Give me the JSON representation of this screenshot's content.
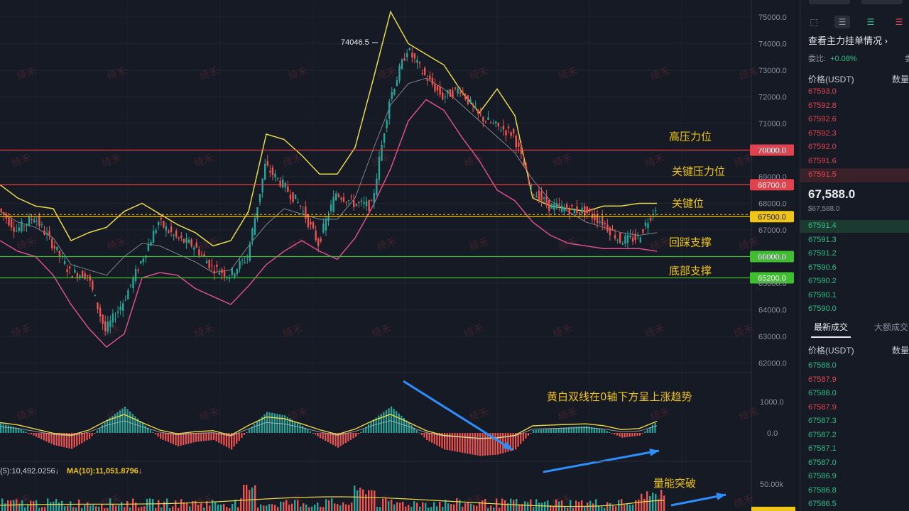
{
  "chart_data": {
    "type": "line",
    "subtype": "candlestick-with-bollinger-macd-volume",
    "y_axis": {
      "min": 62000,
      "max": 75000,
      "ticks": [
        "75000.0",
        "74000.0",
        "73000.0",
        "72000.0",
        "71000.0",
        "70000.0",
        "69000.0",
        "68000.0",
        "67000.0",
        "66000.0",
        "65000.0",
        "64000.0",
        "63000.0",
        "62000.0"
      ]
    },
    "peak_label": "74046.5",
    "price_series": {
      "x": [
        0,
        25,
        50,
        75,
        100,
        125,
        150,
        175,
        200,
        225,
        250,
        275,
        300,
        325,
        350,
        375,
        400,
        425,
        450,
        475,
        500,
        525,
        550,
        575,
        600,
        625,
        650,
        675,
        700,
        725,
        750,
        775,
        800,
        825,
        850,
        875,
        900,
        925
      ],
      "close": [
        67800,
        67000,
        67500,
        66500,
        65400,
        65300,
        63200,
        64300,
        65800,
        67300,
        66700,
        66400,
        65600,
        65300,
        66000,
        69400,
        68700,
        67900,
        66500,
        68400,
        68000,
        67900,
        71900,
        73800,
        72800,
        72000,
        72300,
        71300,
        70900,
        70600,
        68500,
        67900,
        67800,
        67700,
        67300,
        66600,
        66700,
        67900
      ]
    },
    "bollinger": {
      "upper": [
        68700,
        68200,
        67900,
        67800,
        66600,
        66900,
        67100,
        67700,
        68000,
        67600,
        67200,
        66900,
        66400,
        66600,
        67700,
        70600,
        70400,
        69800,
        69100,
        69100,
        70100,
        72600,
        75200,
        74000,
        73600,
        73200,
        72200,
        71400,
        72300,
        71300,
        68200,
        67900,
        67800,
        67700,
        67900,
        67900,
        68000,
        68000
      ],
      "middle": [
        67700,
        67300,
        67100,
        66700,
        65700,
        65500,
        65300,
        66000,
        66500,
        66400,
        66100,
        65800,
        65400,
        65500,
        66400,
        67200,
        67800,
        67600,
        67400,
        67400,
        68200,
        70000,
        71700,
        72500,
        72700,
        72300,
        71700,
        71100,
        70500,
        69900,
        68900,
        68100,
        67700,
        67300,
        67100,
        66900,
        66800,
        66900
      ],
      "lower": [
        66600,
        66200,
        66000,
        65300,
        64200,
        63300,
        62600,
        63100,
        65200,
        65400,
        65300,
        64800,
        64500,
        64200,
        64900,
        65700,
        66200,
        66600,
        66200,
        65900,
        66700,
        67900,
        69300,
        71100,
        71900,
        71500,
        70500,
        69600,
        68500,
        68100,
        67300,
        66800,
        66500,
        66400,
        66300,
        66300,
        66300,
        66200
      ]
    },
    "horizontal_levels": [
      {
        "price": "70000.0",
        "label": "高压力位",
        "color": "#e0434e"
      },
      {
        "price": "68700.0",
        "label": "关键压力位",
        "color": "#e0434e"
      },
      {
        "price": "67500.0",
        "label": "关键位",
        "color": "#f0c419"
      },
      {
        "price": "66000.0",
        "label": "回踩支撑",
        "color": "#3fbf2f"
      },
      {
        "price": "65200.0",
        "label": "底部支撑",
        "color": "#3fbf2f"
      }
    ],
    "macd": {
      "ticks": [
        "1000.0",
        "0.0"
      ],
      "annotation": "黄白双线在0轴下方呈上涨趋势",
      "histogram": [
        300,
        150,
        -120,
        -380,
        -500,
        -180,
        420,
        820,
        300,
        -180,
        -420,
        -280,
        -220,
        -520,
        120,
        660,
        550,
        220,
        -160,
        -460,
        -120,
        420,
        830,
        320,
        -220,
        -520,
        -620,
        -720,
        -680,
        -520,
        90,
        140,
        180,
        220,
        100,
        -150,
        -80,
        380
      ]
    },
    "volume": {
      "ma_text": "(5):10,492.0256↓",
      "ma10_text": "MA(10):11,051.8796↓",
      "tick": "50.00k",
      "annotation": "量能突破"
    },
    "watermark": "绮禾",
    "colors": {
      "up": "#26a69a",
      "down": "#ef5350",
      "ma_yellow": "#e8d84a",
      "ma_white": "#c8c8d0",
      "boll_pink": "#d94f8e",
      "arrow": "#2b8fff"
    }
  },
  "sidepanel": {
    "tabs_top_icons": [
      "layout-icon",
      "list-icon",
      "list-red-icon"
    ],
    "orderbook_link": "查看主力挂单情况",
    "ratio_label": "委比:",
    "ratio_value": "+0.08%",
    "ratio_cut": "委",
    "orderbook_price_header": "价格(USDT)",
    "orderbook_qty_header": "数量(E",
    "asks": [
      "67593.0",
      "67592.8",
      "67592.6",
      "67592.3",
      "67592.0",
      "67591.6",
      "67591.5"
    ],
    "mid_price": "67,588.0",
    "mid_sub": "$67,588.0",
    "bids": [
      "67591.4",
      "67591.3",
      "67591.2",
      "67590.6",
      "67590.2",
      "67590.1",
      "67590.0"
    ],
    "trades_tab_active": "最新成交",
    "trades_tab_other": "大额成交",
    "trades_price_header": "价格(USDT)",
    "trades_qty_header": "数量(E",
    "trades": [
      "67588.0",
      "67587.9",
      "67588.0",
      "67587.9",
      "67587.3",
      "67587.2",
      "67587.1",
      "67587.0",
      "67586.9",
      "67586.8",
      "67586.5"
    ],
    "trades_red": [
      false,
      true,
      false,
      true,
      false,
      false,
      false,
      false,
      false,
      false,
      false
    ]
  }
}
